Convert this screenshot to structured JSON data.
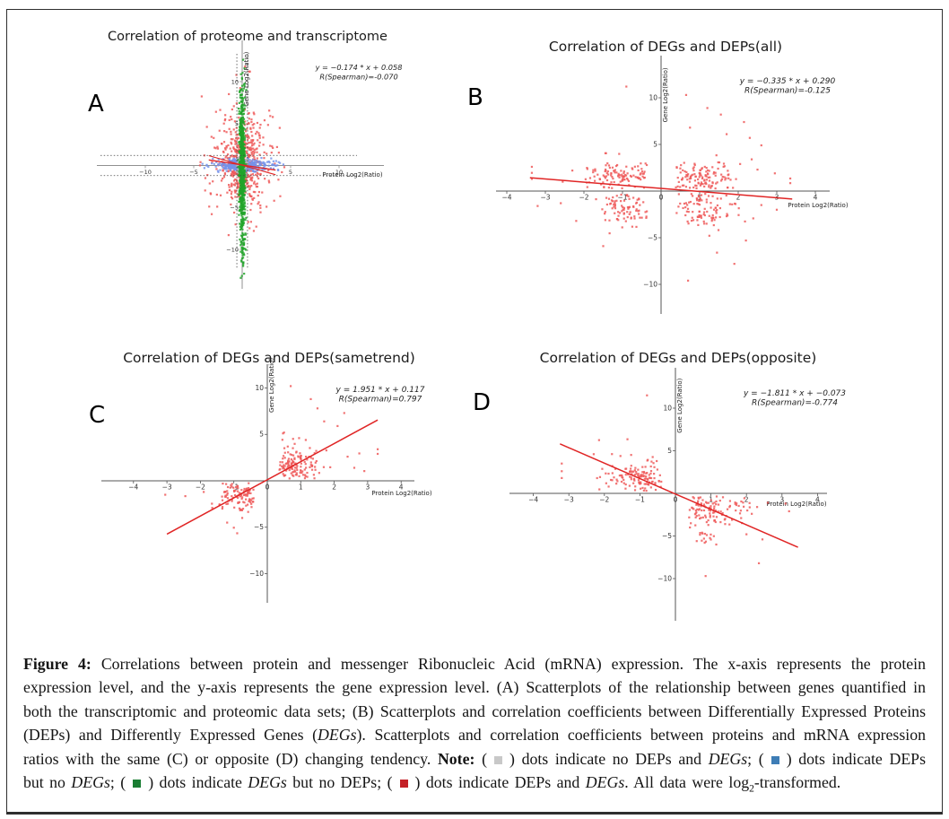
{
  "figure_label": "Figure 4:",
  "colors": {
    "dot_red": "#ee5a5a",
    "dot_green": "#21a42a",
    "dot_blue": "#7593ea",
    "dot_gray": "#b5b5b5",
    "fit_line": "#e02525",
    "axis_a": "#909090",
    "axis_other": "#555555",
    "tick_text": "#333333",
    "title_text": "#1c1c1c"
  },
  "chart_data": [
    {
      "id": "A",
      "type": "scatter",
      "panel_letter": "A",
      "title": "Correlation of proteome and transcriptome",
      "xlabel": "Protein Log2(Ratio)",
      "ylabel": "Gene Log2(Ratio)",
      "equation": "y = −0.174 * x + 0.058",
      "spearman": "R(Spearman)=-0.070",
      "xlim": [
        -14.5,
        14.5
      ],
      "ylim": [
        -14.5,
        14.5
      ],
      "xticks": [
        -10,
        -5,
        5,
        10
      ],
      "yticks": [
        10,
        5,
        -5,
        -10
      ],
      "guides": {
        "h": [
          1.2,
          -1.2
        ],
        "v": [
          0.55,
          -0.55
        ]
      },
      "fit_lines": [
        {
          "x1": -3.45,
          "y1": 0.66,
          "x2": 3.45,
          "y2": -0.54,
          "w": 1.3
        },
        {
          "x1": -3.45,
          "y1": 1.18,
          "x2": 3.45,
          "y2": -1.1,
          "w": 1.1
        }
      ],
      "clusters": [
        {
          "color": "red",
          "n": 360,
          "cx": 0,
          "cy": 0.5,
          "sx": 0.95,
          "sy": 2.0,
          "clip": [
            -4.3,
            4.3,
            -7.5,
            11.0
          ]
        },
        {
          "color": "red",
          "n": 210,
          "cx": 0,
          "cy": 0.3,
          "sx": 1.8,
          "sy": 3.8,
          "clip": [
            -4.6,
            4.6,
            -8.5,
            11.8
          ]
        },
        {
          "color": "blue",
          "n": 270,
          "cx": 0,
          "cy": 0,
          "sx": 0.95,
          "sy": 0.33,
          "clip": [
            -3.6,
            3.6,
            -0.88,
            0.88
          ]
        },
        {
          "color": "blue",
          "n": 170,
          "cx": 0,
          "cy": 0,
          "sx": 1.9,
          "sy": 0.36,
          "clip": [
            -3.8,
            3.8,
            -0.9,
            0.9
          ]
        },
        {
          "color": "gray",
          "n": 80,
          "cx": 0,
          "cy": 0,
          "sx": 0.32,
          "sy": 0.5,
          "clip": [
            -1.0,
            1.0,
            -1.1,
            1.1
          ]
        },
        {
          "color": "green",
          "n": 420,
          "cx": 0,
          "cy": 0.2,
          "sx": 0.15,
          "sy": 3.4,
          "clip": [
            -0.42,
            0.42,
            -12.8,
            12.2
          ]
        },
        {
          "color": "green",
          "n": 300,
          "cx": 0,
          "cy": -1.0,
          "sx": 0.16,
          "sy": 6.8,
          "clip": [
            -0.44,
            0.44,
            -13.2,
            12.2
          ]
        }
      ],
      "outliers": [
        {
          "color": "red",
          "pts": [
            [
              -3.9,
              1.2
            ],
            [
              4.1,
              -0.8
            ],
            [
              3.6,
              2.2
            ],
            [
              -3.8,
              -1.5
            ],
            [
              0.3,
              11.8
            ],
            [
              0.8,
              11.2
            ],
            [
              -0.6,
              10.8
            ],
            [
              1.2,
              -7.8
            ],
            [
              -1.4,
              -8.3
            ],
            [
              2.9,
              5.9
            ],
            [
              -2.7,
              6.4
            ],
            [
              3.3,
              -4.2
            ],
            [
              4.35,
              -0.2
            ],
            [
              -4.3,
              0.4
            ]
          ]
        },
        {
          "color": "blue",
          "pts": [
            [
              3.9,
              0.3
            ],
            [
              -3.9,
              -0.3
            ],
            [
              4.25,
              0.12
            ],
            [
              -4.1,
              0.2
            ],
            [
              3.7,
              -0.5
            ]
          ]
        },
        {
          "color": "green",
          "pts": [
            [
              0.1,
              12.6
            ],
            [
              -0.15,
              -13.4
            ],
            [
              0.2,
              -12.9
            ]
          ]
        }
      ]
    },
    {
      "id": "B",
      "type": "scatter",
      "panel_letter": "B",
      "title": "Correlation of DEGs and DEPs(all)",
      "xlabel": "Protein Log2(Ratio)",
      "ylabel": "Gene Log2(Ratio)",
      "equation": "y = −0.335 * x + 0.290",
      "spearman": "R(Spearman)=-0.125",
      "xlim": [
        -4.5,
        4.5
      ],
      "ylim": [
        -14,
        14
      ],
      "xticks": [
        -4,
        -3,
        -2,
        -1,
        0,
        1,
        2,
        3,
        4
      ],
      "yticks": [
        10,
        5,
        -5,
        -10
      ],
      "guides": null,
      "fit_lines": [
        {
          "x1": -3.4,
          "y1": 1.43,
          "x2": 3.4,
          "y2": -0.85,
          "w": 1.5
        }
      ],
      "clusters": [
        {
          "color": "red",
          "n": 115,
          "cx": -1.05,
          "cy": 1.45,
          "sx": 0.48,
          "sy": 0.9,
          "clip": [
            -2.4,
            -0.36,
            0.28,
            4.2
          ]
        },
        {
          "color": "red",
          "n": 125,
          "cx": 0.95,
          "cy": 1.4,
          "sx": 0.5,
          "sy": 0.9,
          "clip": [
            0.36,
            2.4,
            0.28,
            4.2
          ]
        },
        {
          "color": "red",
          "n": 85,
          "cx": -0.9,
          "cy": -1.7,
          "sx": 0.42,
          "sy": 1.15,
          "clip": [
            -2.25,
            -0.36,
            -6.0,
            -0.3
          ]
        },
        {
          "color": "red",
          "n": 100,
          "cx": 0.95,
          "cy": -1.6,
          "sx": 0.5,
          "sy": 1.2,
          "clip": [
            0.36,
            2.6,
            -6.2,
            -0.3
          ]
        }
      ],
      "outliers": [
        {
          "color": "red",
          "pts": [
            [
              -0.9,
              11.2
            ],
            [
              0.65,
              10.3
            ],
            [
              1.2,
              8.9
            ],
            [
              1.55,
              8.2
            ],
            [
              2.15,
              7.4
            ],
            [
              0.75,
              6.8
            ],
            [
              1.7,
              6.1
            ],
            [
              2.3,
              5.7
            ],
            [
              2.6,
              4.9
            ],
            [
              -3.35,
              2.6
            ],
            [
              -3.35,
              1.95
            ],
            [
              -3.35,
              1.3
            ],
            [
              -2.3,
              2.2
            ],
            [
              -2.55,
              1.0
            ],
            [
              3.35,
              1.35
            ],
            [
              3.35,
              0.85
            ],
            [
              2.95,
              1.9
            ],
            [
              2.5,
              2.3
            ],
            [
              2.35,
              3.4
            ],
            [
              2.05,
              2.9
            ],
            [
              1.9,
              -7.8
            ],
            [
              0.7,
              -9.6
            ],
            [
              3.0,
              -2.0
            ],
            [
              2.6,
              -1.5
            ],
            [
              -3.2,
              -1.6
            ],
            [
              -2.6,
              -1.3
            ],
            [
              -2.2,
              -3.2
            ],
            [
              1.45,
              -6.6
            ],
            [
              2.2,
              -5.3
            ],
            [
              -1.5,
              -5.9
            ]
          ]
        }
      ]
    },
    {
      "id": "C",
      "type": "scatter",
      "panel_letter": "C",
      "title": "Correlation of DEGs and DEPs(sametrend)",
      "xlabel": "Protein Log2(Ratio)",
      "ylabel": "Gene Log2(Ratio)",
      "equation": "y = 1.951 * x + 0.117",
      "spearman": "R(Spearman)=0.797",
      "xlim": [
        -4.5,
        4.5
      ],
      "ylim": [
        -14,
        14
      ],
      "xticks": [
        -4,
        -3,
        -2,
        -1,
        0,
        1,
        2,
        3,
        4
      ],
      "yticks": [
        10,
        5,
        -5,
        -10
      ],
      "guides": null,
      "fit_lines": [
        {
          "x1": -3.0,
          "y1": -5.74,
          "x2": 3.3,
          "y2": 6.55,
          "w": 1.5
        }
      ],
      "clusters": [
        {
          "color": "red",
          "n": 135,
          "cx": 0.85,
          "cy": 1.55,
          "sx": 0.42,
          "sy": 1.05,
          "clip": [
            0.36,
            2.1,
            0.25,
            5.2
          ]
        },
        {
          "color": "red",
          "n": 110,
          "cx": -0.8,
          "cy": -1.4,
          "sx": 0.36,
          "sy": 0.85,
          "clip": [
            -1.7,
            -0.36,
            -4.3,
            -0.25
          ]
        }
      ],
      "outliers": [
        {
          "color": "red",
          "pts": [
            [
              0.7,
              10.2
            ],
            [
              1.3,
              8.8
            ],
            [
              1.5,
              7.8
            ],
            [
              2.3,
              7.3
            ],
            [
              2.1,
              5.9
            ],
            [
              1.7,
              6.4
            ],
            [
              3.3,
              3.4
            ],
            [
              3.3,
              2.9
            ],
            [
              2.75,
              2.95
            ],
            [
              2.4,
              2.6
            ],
            [
              2.6,
              1.4
            ],
            [
              2.9,
              1.05
            ],
            [
              -3.05,
              -1.5
            ],
            [
              -2.45,
              -1.65
            ],
            [
              -1.9,
              -1.2
            ],
            [
              -1.0,
              -5.05
            ],
            [
              -0.9,
              -5.65
            ],
            [
              -1.2,
              -4.5
            ],
            [
              -0.75,
              -4.0
            ],
            [
              0.5,
              5.2
            ],
            [
              0.95,
              4.6
            ],
            [
              1.15,
              4.4
            ]
          ]
        }
      ]
    },
    {
      "id": "D",
      "type": "scatter",
      "panel_letter": "D",
      "title": "Correlation of DEGs and DEPs(opposite)",
      "xlabel": "Protein Log2(Ratio)",
      "ylabel": "Gene Log2(Ratio)",
      "equation": "y = −1.811 * x + −0.073",
      "spearman": "R(Spearman)=-0.774",
      "xlim": [
        -4.5,
        4.5
      ],
      "ylim": [
        -14,
        14
      ],
      "xticks": [
        -4,
        -3,
        -2,
        -1,
        0,
        1,
        2,
        3,
        4
      ],
      "yticks": [
        10,
        5,
        -5,
        -10
      ],
      "guides": null,
      "fit_lines": [
        {
          "x1": -3.25,
          "y1": 5.81,
          "x2": 3.45,
          "y2": -6.32,
          "w": 1.5
        }
      ],
      "clusters": [
        {
          "color": "red",
          "n": 130,
          "cx": -1.05,
          "cy": 2.0,
          "sx": 0.5,
          "sy": 1.0,
          "clip": [
            -2.35,
            -0.36,
            0.3,
            5.3
          ]
        },
        {
          "color": "red",
          "n": 110,
          "cx": 0.95,
          "cy": -1.8,
          "sx": 0.45,
          "sy": 1.05,
          "clip": [
            0.36,
            2.5,
            -5.9,
            -0.35
          ]
        },
        {
          "color": "red",
          "n": 14,
          "cx": 0.85,
          "cy": -5.0,
          "sx": 0.17,
          "sy": 0.5,
          "clip": [
            0.5,
            1.2,
            -6.0,
            -4.0
          ]
        }
      ],
      "outliers": [
        {
          "color": "red",
          "pts": [
            [
              -0.8,
              11.5
            ],
            [
              -1.35,
              6.35
            ],
            [
              -2.15,
              6.25
            ],
            [
              -3.2,
              3.5
            ],
            [
              -3.2,
              2.6
            ],
            [
              -3.2,
              1.8
            ],
            [
              -2.3,
              4.6
            ],
            [
              3.1,
              -1.2
            ],
            [
              3.2,
              -2.1
            ],
            [
              2.6,
              -1.1
            ],
            [
              2.3,
              -1.6
            ],
            [
              2.45,
              -5.4
            ],
            [
              2.0,
              -4.8
            ],
            [
              1.4,
              -3.6
            ],
            [
              2.35,
              -8.2
            ],
            [
              0.85,
              -9.7
            ],
            [
              1.15,
              -6.0
            ],
            [
              0.6,
              -5.6
            ],
            [
              1.85,
              -2.9
            ],
            [
              2.15,
              -2.4
            ]
          ]
        }
      ]
    }
  ],
  "caption": {
    "segments": [
      {
        "text": "Figure 4:",
        "bold": true
      },
      {
        "text": " Correlations between protein and messenger Ribonucleic Acid (mRNA) expression. The x-axis represents the protein expression level, and the y-axis represents the gene expression level. (A) Scatterplots of the relationship between genes quantified in both the transcriptomic and proteomic data sets; (B) Scatterplots and correlation coefficients between Differentially Expressed Proteins (DEPs) and Differently Expressed Genes ("
      },
      {
        "text": "DEGs",
        "italic": true
      },
      {
        "text": "). Scatterplots and correlation coefficients between proteins and mRNA expression ratios with the same (C) or opposite (D) changing tendency. "
      },
      {
        "text": "Note:",
        "bold": true
      },
      {
        "text": " ("
      },
      {
        "square": "#c8c8c8",
        "name": "gray-square"
      },
      {
        "text": ") dots indicate no DEPs and "
      },
      {
        "text": "DEGs",
        "italic": true
      },
      {
        "text": "; ("
      },
      {
        "square": "#3e7db6",
        "name": "blue-square"
      },
      {
        "text": ") dots indicate DEPs but no "
      },
      {
        "text": "DEGs",
        "italic": true
      },
      {
        "text": "; ("
      },
      {
        "square": "#1a7d33",
        "name": "green-square"
      },
      {
        "text": ") dots indicate "
      },
      {
        "text": "DEGs",
        "italic": true
      },
      {
        "text": " but no DEPs; ("
      },
      {
        "square": "#c42127",
        "name": "red-square"
      },
      {
        "text": ") dots indicate DEPs and "
      },
      {
        "text": "DEGs",
        "italic": true
      },
      {
        "text": ". All data were log"
      },
      {
        "text": "2",
        "sub": true
      },
      {
        "text": "-transformed."
      }
    ]
  }
}
